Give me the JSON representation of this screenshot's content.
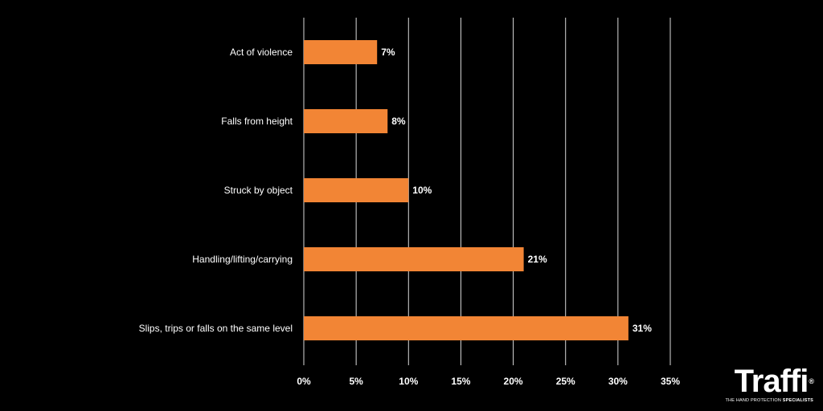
{
  "chart_data": {
    "type": "bar",
    "orientation": "horizontal",
    "categories": [
      "Act of violence",
      "Falls from height",
      "Struck by object",
      "Handling/lifting/carrying",
      "Slips, trips or falls on the same level"
    ],
    "values": [
      7,
      8,
      10,
      21,
      31
    ],
    "value_labels": [
      "7%",
      "8%",
      "10%",
      "21%",
      "31%"
    ],
    "xlim": [
      0,
      35
    ],
    "xticks": [
      0,
      5,
      10,
      15,
      20,
      25,
      30,
      35
    ],
    "xtick_labels": [
      "0%",
      "5%",
      "10%",
      "15%",
      "20%",
      "25%",
      "30%",
      "35%"
    ],
    "grid": "vertical",
    "title": "",
    "xlabel": "",
    "ylabel": "",
    "colors": {
      "bar": "#f28535",
      "background": "#000000",
      "grid": "#ffffff",
      "text": "#ffffff"
    }
  },
  "logo": {
    "word": "Traffi",
    "mark": "®",
    "tagline_plain": "THE HAND PROTECTION",
    "tagline_bold": "SPECIALISTS"
  }
}
